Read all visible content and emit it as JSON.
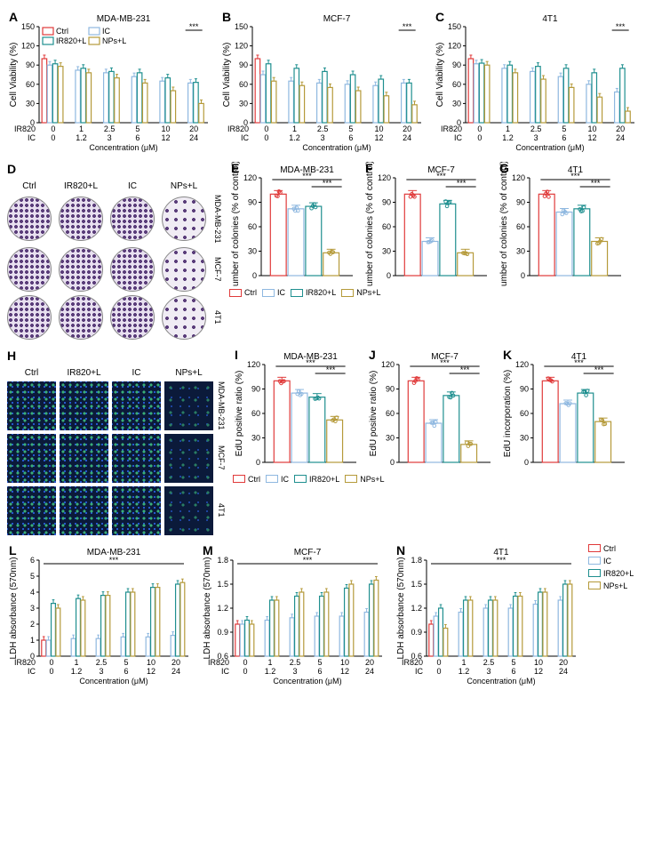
{
  "groups": {
    "ctrl": {
      "label": "Ctrl",
      "color": "#e03a3a"
    },
    "ic": {
      "label": "IC",
      "color": "#8fb8e0"
    },
    "ir820l": {
      "label": "IR820+L",
      "color": "#1f8f8f"
    },
    "npsl": {
      "label": "NPs+L",
      "color": "#b59a3a"
    }
  },
  "concentrations": {
    "ir820": [
      "0",
      "1",
      "2.5",
      "5",
      "10",
      "20"
    ],
    "ic": [
      "0",
      "1.2",
      "3",
      "6",
      "12",
      "24"
    ],
    "xlabel": "Concentration (μM)"
  },
  "viability": {
    "ylabel": "Cell Viability  (%)",
    "ylim": [
      0,
      150
    ],
    "ytick_step": 30,
    "panels": {
      "A": {
        "title": "MDA-MB-231",
        "sig": "***",
        "series": {
          "ctrl": [
            100
          ],
          "ic": [
            90,
            82,
            78,
            72,
            65,
            62
          ],
          "ir820l": [
            92,
            85,
            80,
            78,
            70,
            63
          ],
          "npsl": [
            88,
            78,
            70,
            62,
            50,
            30
          ]
        }
      },
      "B": {
        "title": "MCF-7",
        "sig": "***",
        "series": {
          "ctrl": [
            100
          ],
          "ic": [
            75,
            65,
            62,
            60,
            58,
            62
          ],
          "ir820l": [
            92,
            85,
            80,
            75,
            68,
            62
          ],
          "npsl": [
            65,
            58,
            55,
            50,
            42,
            28
          ]
        }
      },
      "C": {
        "title": "4T1",
        "sig": "***",
        "series": {
          "ctrl": [
            100
          ],
          "ic": [
            92,
            85,
            80,
            72,
            60,
            48
          ],
          "ir820l": [
            93,
            90,
            88,
            85,
            78,
            85
          ],
          "npsl": [
            90,
            78,
            68,
            55,
            40,
            18
          ]
        }
      }
    }
  },
  "colony": {
    "ylabel": "Number of colonies\n(% of control)",
    "ylim": [
      0,
      120
    ],
    "ytick_step": 30,
    "D": {
      "cols": [
        "Ctrl",
        "IR820+L",
        "IC",
        "NPs+L"
      ],
      "rows": [
        "MDA-MB-231",
        "MCF-7",
        "4T1"
      ]
    },
    "panels": {
      "E": {
        "title": "MDA-MB-231",
        "vals": {
          "ctrl": 100,
          "ic": 82,
          "ir820l": 85,
          "npsl": 28
        },
        "sig": "***"
      },
      "F": {
        "title": "MCF-7",
        "vals": {
          "ctrl": 100,
          "ic": 42,
          "ir820l": 88,
          "npsl": 28
        },
        "sig": "***"
      },
      "G": {
        "title": "4T1",
        "vals": {
          "ctrl": 100,
          "ic": 78,
          "ir820l": 82,
          "npsl": 42
        },
        "sig": "***"
      }
    }
  },
  "edu": {
    "H": {
      "cols": [
        "Ctrl",
        "IR820+L",
        "IC",
        "NPs+L"
      ],
      "rows": [
        "MDA-MB-231",
        "MCF-7",
        "4T1"
      ]
    },
    "panels": {
      "I": {
        "title": "MDA-MB-231",
        "ylabel": "EdU positive ratio (%)",
        "ylim": [
          0,
          120
        ],
        "ytick_step": 30,
        "vals": {
          "ctrl": 100,
          "ic": 85,
          "ir820l": 80,
          "npsl": 52
        },
        "sig": "***"
      },
      "J": {
        "title": "MCF-7",
        "ylabel": "EdU positive ratio (%)",
        "ylim": [
          0,
          120
        ],
        "ytick_step": 30,
        "vals": {
          "ctrl": 100,
          "ic": 48,
          "ir820l": 82,
          "npsl": 22
        },
        "sig": "***"
      },
      "K": {
        "title": "4T1",
        "ylabel": "EdU incorporation (%)",
        "ylim": [
          0,
          120
        ],
        "ytick_step": 30,
        "vals": {
          "ctrl": 100,
          "ic": 72,
          "ir820l": 85,
          "npsl": 50
        },
        "sig": "***"
      }
    }
  },
  "ldh": {
    "ylabel": "LDH absorbance (570nm)",
    "panels": {
      "L": {
        "title": "MDA-MB-231",
        "ylim": [
          0,
          6
        ],
        "ytick_step": 1,
        "sig": "***",
        "series": {
          "ctrl": [
            1.0
          ],
          "ic": [
            1.0,
            1.1,
            1.1,
            1.2,
            1.2,
            1.3
          ],
          "ir820l": [
            3.3,
            3.6,
            3.8,
            4.0,
            4.3,
            4.5
          ],
          "npsl": [
            3.0,
            3.5,
            3.8,
            4.0,
            4.3,
            4.6
          ]
        }
      },
      "M": {
        "title": "MCF-7",
        "ylim": [
          0.6,
          1.8
        ],
        "ytick_step": 0.3,
        "sig": "***",
        "series": {
          "ctrl": [
            1.0
          ],
          "ic": [
            1.0,
            1.05,
            1.08,
            1.1,
            1.1,
            1.15
          ],
          "ir820l": [
            1.05,
            1.3,
            1.35,
            1.35,
            1.45,
            1.5
          ],
          "npsl": [
            1.0,
            1.3,
            1.4,
            1.4,
            1.5,
            1.55
          ]
        }
      },
      "N": {
        "title": "4T1",
        "ylim": [
          0.6,
          1.8
        ],
        "ytick_step": 0.3,
        "sig": "***",
        "series": {
          "ctrl": [
            1.0
          ],
          "ic": [
            1.1,
            1.15,
            1.2,
            1.2,
            1.25,
            1.3
          ],
          "ir820l": [
            1.2,
            1.3,
            1.3,
            1.35,
            1.4,
            1.5
          ],
          "npsl": [
            0.95,
            1.3,
            1.3,
            1.35,
            1.4,
            1.5
          ]
        }
      }
    }
  }
}
